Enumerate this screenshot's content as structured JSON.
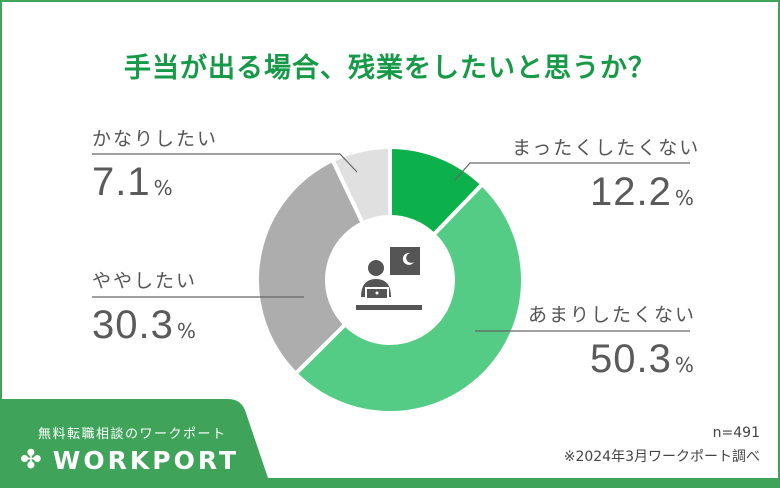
{
  "title": "手当が出る場合、残業をしたいと思うか？",
  "chart_data": {
    "type": "pie",
    "subtype": "donut",
    "title": "手当が出る場合、残業をしたいと思うか？",
    "categories": [
      "まったくしたくない",
      "あまりしたくない",
      "ややしたい",
      "かなりしたい"
    ],
    "values": [
      12.2,
      50.3,
      30.3,
      7.1
    ],
    "unit": "%",
    "colors": [
      "#0cb14b",
      "#55cc85",
      "#adadad",
      "#e0e0e0"
    ],
    "start_angle": "12 o'clock, clockwise",
    "sample_size": "n=491"
  },
  "labels": [
    {
      "name": "かなりしたい",
      "value": "7.1",
      "unit": "%"
    },
    {
      "name": "まったくしたくない",
      "value": "12.2",
      "unit": "%"
    },
    {
      "name": "ややしたい",
      "value": "30.3",
      "unit": "%"
    },
    {
      "name": "あまりしたくない",
      "value": "50.3",
      "unit": "%"
    }
  ],
  "center_icon": "person-working-at-night-icon",
  "footer": {
    "tagline": "無料転職相談のワークポート",
    "logo": "WORKPORT",
    "logo_icon": "✤",
    "sample": "n=491",
    "source": "※2024年3月ワークポート調べ"
  },
  "colors": {
    "brand_green": "#3fa45a",
    "title_green": "#169a48",
    "text_gray": "#555555"
  }
}
